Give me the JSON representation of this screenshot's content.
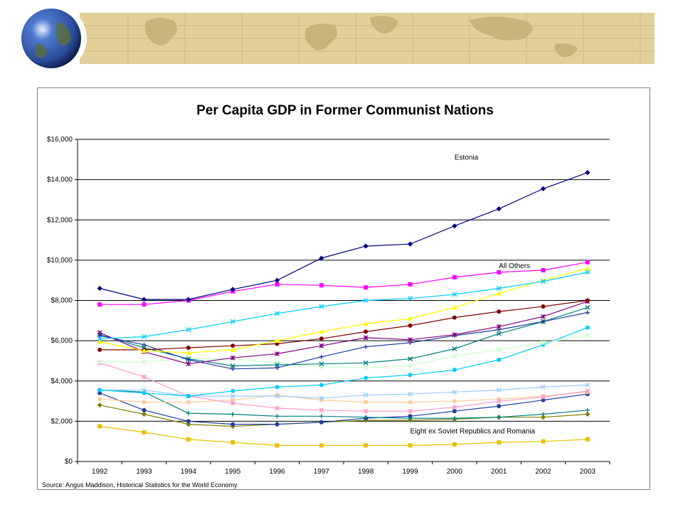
{
  "slide": {
    "accent_colors": {
      "banner": "#e2cf9a",
      "banner_map": "#cbb47c",
      "globe": "#2a4c9a"
    }
  },
  "chart_data": {
    "type": "line",
    "title": "Per Capita GDP in Former Communist Nations",
    "xlabel": "",
    "ylabel": "",
    "x": [
      "1992",
      "1993",
      "1994",
      "1995",
      "1996",
      "1997",
      "1998",
      "1999",
      "2000",
      "2001",
      "2002",
      "2003"
    ],
    "ylim": [
      0,
      16000
    ],
    "yticks": [
      0,
      2000,
      4000,
      6000,
      8000,
      10000,
      12000,
      14000,
      16000
    ],
    "ytick_labels": [
      "$0",
      "$2,000",
      "$4,000",
      "$6,000",
      "$8,000",
      "$10,000",
      "$12,000",
      "$14,000",
      "$16,000"
    ],
    "grid": "horizontal",
    "legend": "none",
    "annotations": [
      {
        "text": "Estonia",
        "x": "2000",
        "y": 15000
      },
      {
        "text": "All Others",
        "x": "2001",
        "y": 9600
      },
      {
        "text": "Eight ex Soviet Republics and Romania",
        "x": "1999",
        "y": 1400
      }
    ],
    "source": "Source: Angus Maddison, Historical Statistics for the World Economy",
    "series": [
      {
        "color": "#000080",
        "marker": "diamond",
        "values": [
          8600,
          8050,
          8050,
          8550,
          9000,
          10100,
          10700,
          10800,
          11700,
          12550,
          13550,
          14350
        ]
      },
      {
        "color": "#ff00ff",
        "marker": "square",
        "values": [
          7800,
          7800,
          8000,
          8450,
          8800,
          8750,
          8650,
          8800,
          9150,
          9400,
          9500,
          9900
        ]
      },
      {
        "color": "#00ccff",
        "marker": "x",
        "values": [
          6100,
          6200,
          6550,
          6950,
          7350,
          7700,
          8000,
          8100,
          8300,
          8600,
          8950,
          9400
        ]
      },
      {
        "color": "#ffff00",
        "marker": "triangle",
        "values": [
          5950,
          5500,
          5400,
          5550,
          6000,
          6450,
          6850,
          7100,
          7650,
          8350,
          9000,
          9600
        ]
      },
      {
        "color": "#800000",
        "marker": "circle",
        "values": [
          5550,
          5550,
          5650,
          5750,
          5850,
          6100,
          6450,
          6750,
          7150,
          7450,
          7700,
          8000
        ]
      },
      {
        "color": "#800080",
        "marker": "asterisk",
        "values": [
          6400,
          5450,
          4850,
          5150,
          5350,
          5750,
          6150,
          6050,
          6300,
          6700,
          7200,
          7950
        ]
      },
      {
        "color": "#1f3f9f",
        "marker": "plus",
        "values": [
          6250,
          5800,
          5050,
          4600,
          4650,
          5200,
          5700,
          5900,
          6250,
          6550,
          6950,
          7400
        ]
      },
      {
        "color": "#008080",
        "marker": "x",
        "values": [
          6300,
          5650,
          5100,
          4750,
          4800,
          4850,
          4900,
          5100,
          5600,
          6350,
          6950,
          7650
        ]
      },
      {
        "color": "#ccffcc",
        "marker": "asterisk",
        "values": [
          4950,
          4950,
          5100,
          5100,
          4900,
          4700,
          4650,
          4750,
          5250,
          5550,
          5900,
          6250
        ]
      },
      {
        "color": "#00ccff",
        "marker": "circle",
        "values": [
          3550,
          3400,
          3250,
          3500,
          3700,
          3800,
          4150,
          4300,
          4550,
          5050,
          5800,
          6650
        ]
      },
      {
        "color": "#99ccff",
        "marker": "x",
        "values": [
          3550,
          3550,
          3250,
          3250,
          3250,
          3150,
          3300,
          3350,
          3450,
          3550,
          3700,
          3800
        ]
      },
      {
        "color": "#ff99cc",
        "marker": "asterisk",
        "values": [
          4900,
          4200,
          3250,
          2900,
          2650,
          2550,
          2500,
          2500,
          2700,
          3000,
          3200,
          3500
        ]
      },
      {
        "color": "#ffcc99",
        "marker": "circle",
        "values": [
          3100,
          2950,
          2950,
          3050,
          3300,
          3050,
          2950,
          2950,
          3000,
          3100,
          3250,
          3450
        ]
      },
      {
        "color": "#008080",
        "marker": "plus",
        "values": [
          3550,
          3450,
          2400,
          2350,
          2250,
          2250,
          2200,
          2150,
          2150,
          2200,
          2350,
          2550
        ]
      },
      {
        "color": "#1f3f9f",
        "marker": "circle",
        "values": [
          3400,
          2550,
          2000,
          1850,
          1850,
          1950,
          2150,
          2250,
          2500,
          2750,
          3050,
          3350
        ]
      },
      {
        "color": "#808000",
        "marker": "diamond",
        "values": [
          2800,
          2350,
          1850,
          1750,
          1850,
          1950,
          2050,
          2050,
          2100,
          2200,
          2200,
          2350
        ]
      },
      {
        "color": "#e8c000",
        "marker": "square",
        "values": [
          1750,
          1450,
          1100,
          950,
          800,
          800,
          800,
          800,
          850,
          950,
          1000,
          1100
        ]
      }
    ]
  }
}
